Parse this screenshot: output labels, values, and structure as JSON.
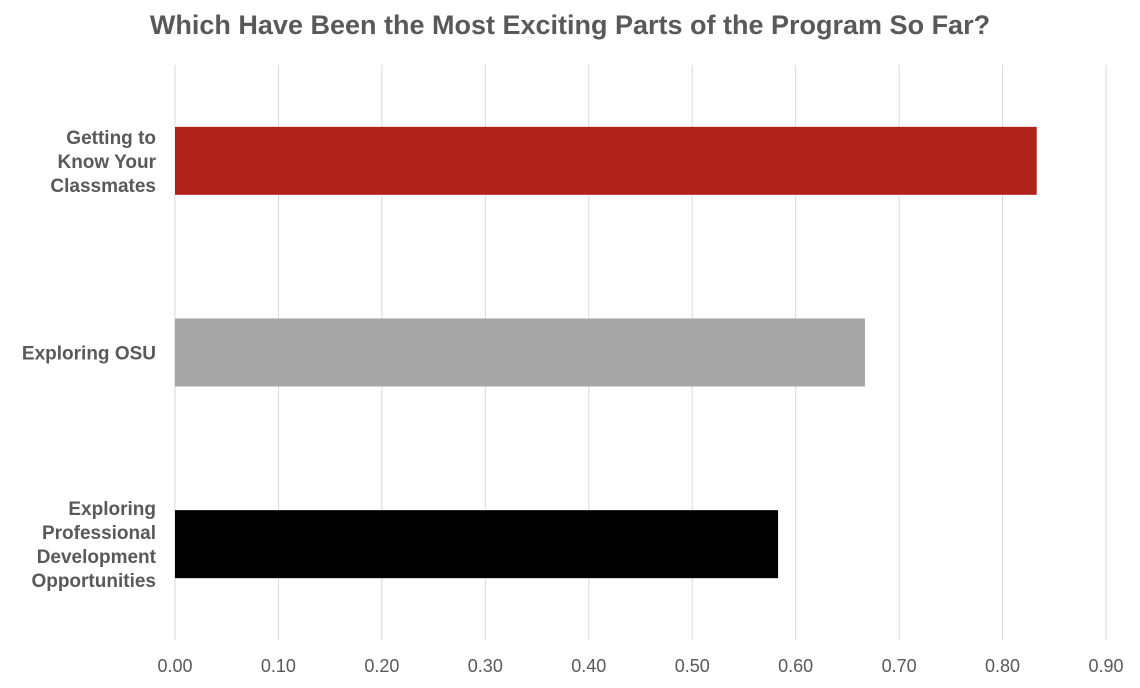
{
  "chart_data": {
    "type": "bar",
    "orientation": "horizontal",
    "title": "Which Have Been the Most Exciting Parts of the Program So Far?",
    "xlabel": "",
    "ylabel": "",
    "categories": [
      [
        "Getting to",
        "Know Your",
        "Classmates"
      ],
      [
        "Exploring OSU"
      ],
      [
        "Exploring",
        "Professional",
        "Development",
        "Opportunities"
      ]
    ],
    "values": [
      0.833,
      0.667,
      0.583
    ],
    "bar_colors": [
      "#B0231A",
      "#A6A6A6",
      "#000000"
    ],
    "xlim": [
      0,
      0.9
    ],
    "xticks": [
      "0.00",
      "0.10",
      "0.20",
      "0.30",
      "0.40",
      "0.50",
      "0.60",
      "0.70",
      "0.80",
      "0.90"
    ],
    "grid": "vertical",
    "legend": "none"
  }
}
